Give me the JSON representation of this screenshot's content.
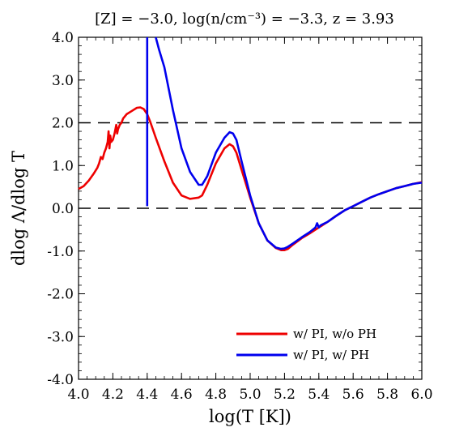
{
  "chart_data": {
    "type": "line",
    "title": "[Z] = −3.0,  log(n/cm⁻³) = −3.3,  z = 3.93",
    "xlabel": "log(T  [K])",
    "ylabel": "dlog Λ/dlog T",
    "xlim": [
      4.0,
      6.0
    ],
    "ylim": [
      -4.0,
      4.0
    ],
    "x_ticks": [
      "4.0",
      "4.2",
      "4.4",
      "4.6",
      "4.8",
      "5.0",
      "5.2",
      "5.4",
      "5.6",
      "5.8",
      "6.0"
    ],
    "y_ticks": [
      "4.0",
      "3.0",
      "2.0",
      "1.0",
      "0.0",
      "-1.0",
      "-2.0",
      "-3.0",
      "-4.0"
    ],
    "reference_lines": [
      2.0,
      0.0
    ],
    "legend_position": "lower-right",
    "series": [
      {
        "name": "w/  PI, w/o PH",
        "color": "#ee0000",
        "x": [
          4.0,
          4.03,
          4.06,
          4.09,
          4.11,
          4.12,
          4.13,
          4.14,
          4.15,
          4.16,
          4.17,
          4.175,
          4.18,
          4.185,
          4.19,
          4.2,
          4.21,
          4.22,
          4.225,
          4.23,
          4.24,
          4.25,
          4.26,
          4.28,
          4.3,
          4.32,
          4.34,
          4.36,
          4.38,
          4.4,
          4.42,
          4.45,
          4.5,
          4.55,
          4.6,
          4.65,
          4.7,
          4.72,
          4.75,
          4.8,
          4.85,
          4.88,
          4.9,
          4.92,
          4.95,
          5.0,
          5.05,
          5.1,
          5.15,
          5.18,
          5.2,
          5.22,
          5.25,
          5.3,
          5.35,
          5.38,
          5.4,
          5.42,
          5.45,
          5.5,
          5.55,
          5.6,
          5.65,
          5.7,
          5.75,
          5.8,
          5.85,
          5.9,
          5.95,
          6.0
        ],
        "y": [
          0.45,
          0.52,
          0.65,
          0.82,
          0.95,
          1.05,
          1.2,
          1.15,
          1.3,
          1.4,
          1.55,
          1.8,
          1.4,
          1.7,
          1.55,
          1.6,
          1.75,
          1.95,
          1.75,
          1.85,
          1.95,
          2.0,
          2.1,
          2.2,
          2.25,
          2.3,
          2.35,
          2.36,
          2.32,
          2.2,
          2.0,
          1.65,
          1.1,
          0.6,
          0.3,
          0.22,
          0.25,
          0.3,
          0.55,
          1.05,
          1.4,
          1.5,
          1.45,
          1.3,
          0.9,
          0.25,
          -0.35,
          -0.75,
          -0.93,
          -0.98,
          -0.98,
          -0.95,
          -0.85,
          -0.7,
          -0.58,
          -0.5,
          -0.45,
          -0.4,
          -0.32,
          -0.18,
          -0.05,
          0.05,
          0.15,
          0.25,
          0.33,
          0.4,
          0.47,
          0.52,
          0.57,
          0.61
        ]
      },
      {
        "name": "w/  PI, w/  PH",
        "color": "#0000ee",
        "x": [
          4.4,
          4.4,
          4.4,
          4.45,
          4.47,
          4.5,
          4.55,
          4.6,
          4.65,
          4.7,
          4.72,
          4.75,
          4.8,
          4.85,
          4.88,
          4.9,
          4.92,
          4.95,
          5.0,
          5.05,
          5.1,
          5.15,
          5.18,
          5.2,
          5.22,
          5.25,
          5.3,
          5.35,
          5.38,
          5.39,
          5.4,
          5.41,
          5.42,
          5.45,
          5.5,
          5.55,
          5.6,
          5.65,
          5.7,
          5.75,
          5.8,
          5.85,
          5.9,
          5.95,
          6.0
        ],
        "y": [
          0.05,
          4.0,
          null,
          4.0,
          3.7,
          3.3,
          2.3,
          1.4,
          0.85,
          0.55,
          0.55,
          0.75,
          1.3,
          1.65,
          1.78,
          1.75,
          1.6,
          1.1,
          0.3,
          -0.35,
          -0.75,
          -0.92,
          -0.95,
          -0.94,
          -0.9,
          -0.82,
          -0.68,
          -0.55,
          -0.45,
          -0.35,
          -0.45,
          -0.4,
          -0.38,
          -0.32,
          -0.18,
          -0.05,
          0.05,
          0.15,
          0.25,
          0.33,
          0.4,
          0.47,
          0.52,
          0.57,
          0.6
        ]
      }
    ]
  }
}
